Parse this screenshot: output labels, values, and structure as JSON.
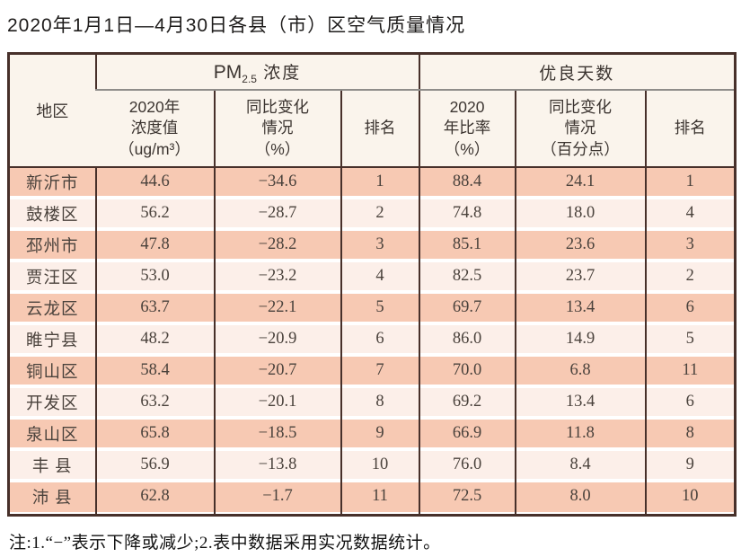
{
  "title": "2020年1月1日—4月30日各县（市）区空气质量情况",
  "table": {
    "region_header": "地区",
    "groups": {
      "pm25": {
        "latin": "PM",
        "sub": "2.5",
        "rest": " 浓度"
      },
      "good_days": "优良天数"
    },
    "subheaders": {
      "pm_value": "2020年\n浓度值\n（ug/m³）",
      "pm_change": "同比变化\n情况\n（%）",
      "pm_rank": "排名",
      "good_ratio": "2020\n年比率\n（%）",
      "good_change": "同比变化\n情况\n（百分点）",
      "good_rank": "排名"
    },
    "rows": [
      [
        "新沂市",
        "44.6",
        "−34.6",
        "1",
        "88.4",
        "24.1",
        "1"
      ],
      [
        "鼓楼区",
        "56.2",
        "−28.7",
        "2",
        "74.8",
        "18.0",
        "4"
      ],
      [
        "邳州市",
        "47.8",
        "−28.2",
        "3",
        "85.1",
        "23.6",
        "3"
      ],
      [
        "贾汪区",
        "53.0",
        "−23.2",
        "4",
        "82.5",
        "23.7",
        "2"
      ],
      [
        "云龙区",
        "63.7",
        "−22.1",
        "5",
        "69.7",
        "13.4",
        "6"
      ],
      [
        "睢宁县",
        "48.2",
        "−20.9",
        "6",
        "86.0",
        "14.9",
        "5"
      ],
      [
        "铜山区",
        "58.4",
        "−20.7",
        "7",
        "70.0",
        "6.8",
        "11"
      ],
      [
        "开发区",
        "63.2",
        "−20.1",
        "8",
        "69.2",
        "13.4",
        "6"
      ],
      [
        "泉山区",
        "65.8",
        "−18.5",
        "9",
        "66.9",
        "11.8",
        "8"
      ],
      [
        "丰 县",
        "56.9",
        "−13.8",
        "10",
        "76.0",
        "8.4",
        "9"
      ],
      [
        "沛 县",
        "62.8",
        "−1.7",
        "11",
        "72.5",
        "8.0",
        "10"
      ]
    ]
  },
  "footnote": "注:1.“−”表示下降或减少;2.表中数据采用实况数据统计。",
  "colors": {
    "border": "#47302a",
    "grayline": "#8f8d8a",
    "header_bg": "#faf4ec",
    "row_odd": "#f7c9b3",
    "row_even": "#fcefe9",
    "gap": "#ffffff"
  }
}
